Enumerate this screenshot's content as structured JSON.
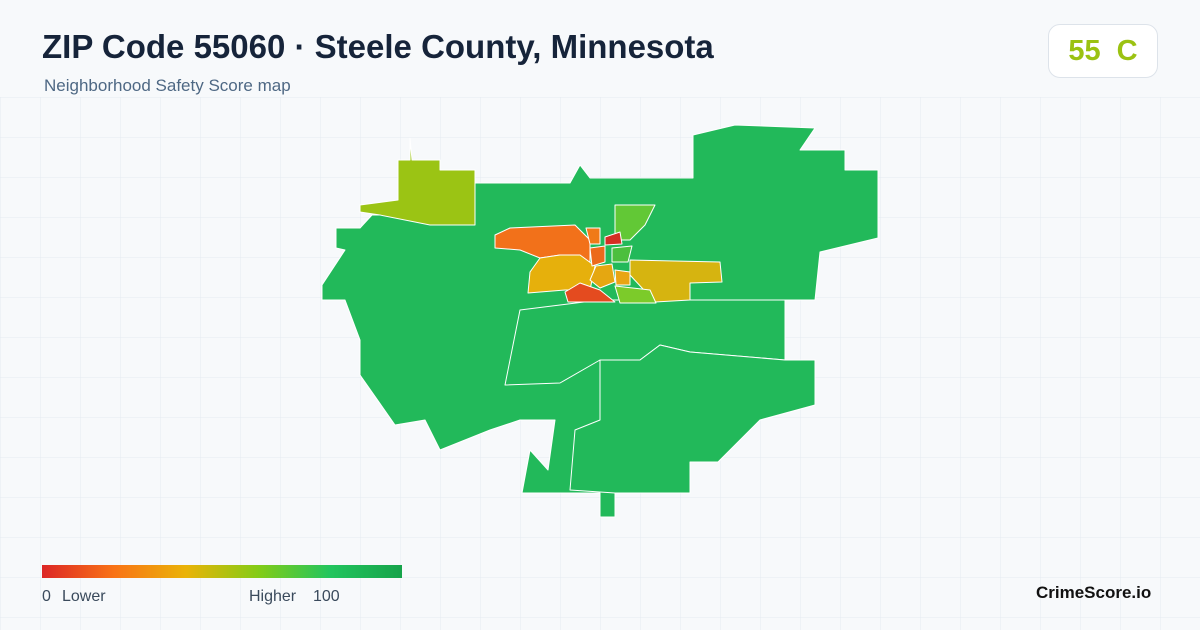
{
  "header": {
    "title": "ZIP Code 55060 · Steele County, Minnesota",
    "subtitle": "Neighborhood Safety Score map"
  },
  "score": {
    "value": 55,
    "grade": "C"
  },
  "legend": {
    "min": 0,
    "min_label": "Lower",
    "max_label": "Higher",
    "max": 100
  },
  "brand": "CrimeScore.io"
}
